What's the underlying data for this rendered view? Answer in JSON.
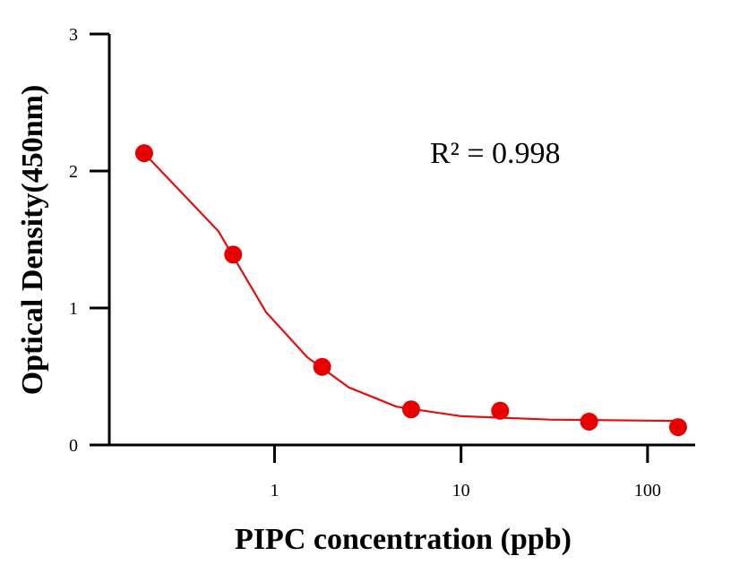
{
  "chart_data": {
    "type": "scatter",
    "xlabel": "PIPC concentration (ppb)",
    "ylabel": "Optical Density(450nm)",
    "xscale": "log",
    "xlim": [
      0.13,
      180
    ],
    "ylim": [
      0,
      3
    ],
    "xticks": [
      1,
      10,
      100
    ],
    "xtick_labels": [
      "1",
      "10",
      "100"
    ],
    "yticks": [
      0,
      1,
      2,
      3
    ],
    "ytick_labels": [
      "0",
      "1",
      "2",
      "3"
    ],
    "grid": false,
    "annotation": "R² = 0.998",
    "series": [
      {
        "color": "#e80000",
        "points": [
          {
            "x": 0.2,
            "y": 2.13
          },
          {
            "x": 0.6,
            "y": 1.39
          },
          {
            "x": 1.8,
            "y": 0.57
          },
          {
            "x": 5.4,
            "y": 0.26
          },
          {
            "x": 16.2,
            "y": 0.25
          },
          {
            "x": 48.6,
            "y": 0.17
          },
          {
            "x": 145.8,
            "y": 0.13
          }
        ]
      }
    ],
    "fit_curve": {
      "color": "#e01010",
      "points": [
        {
          "x": 0.2,
          "y": 2.13
        },
        {
          "x": 0.5,
          "y": 1.56
        },
        {
          "x": 0.9,
          "y": 0.97
        },
        {
          "x": 1.5,
          "y": 0.64
        },
        {
          "x": 2.5,
          "y": 0.42
        },
        {
          "x": 4.5,
          "y": 0.28
        },
        {
          "x": 10,
          "y": 0.21
        },
        {
          "x": 30,
          "y": 0.185
        },
        {
          "x": 100,
          "y": 0.178
        },
        {
          "x": 145.8,
          "y": 0.176
        }
      ]
    }
  }
}
